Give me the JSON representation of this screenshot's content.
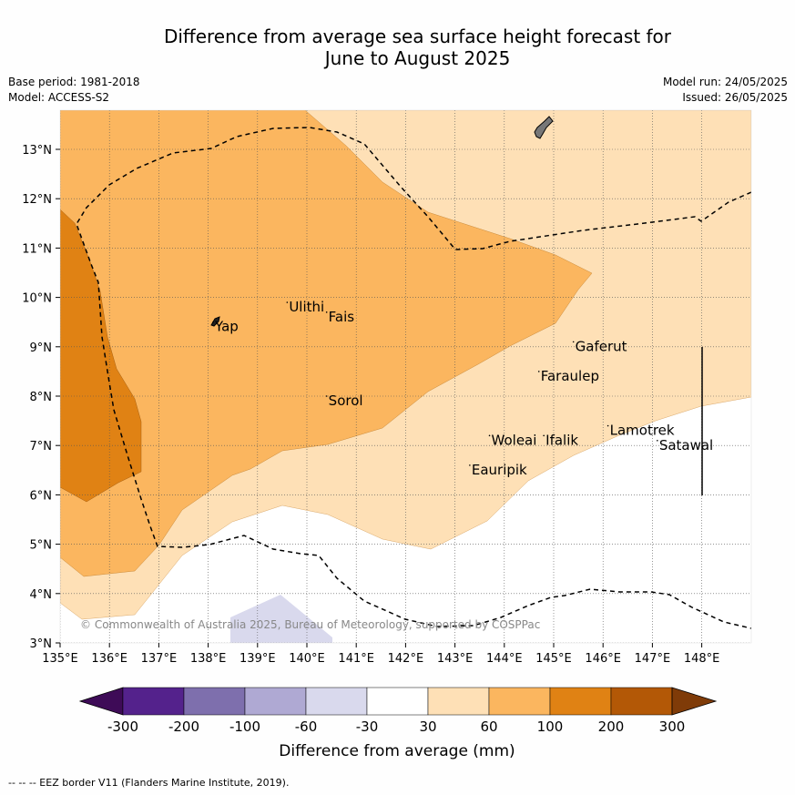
{
  "title_line1": "Difference from average sea surface height forecast for",
  "title_line2": "June to August 2025",
  "base_period": "Base period: 1981-2018",
  "model": "Model: ACCESS-S2",
  "model_run": "Model run: 24/05/2025",
  "issued": "Issued: 26/05/2025",
  "copyright": "© Commonwealth of Australia 2025, Bureau of Meteorology, supported by COSPPac",
  "footer": "--  --  -- EEZ border V11 (Flanders Marine Institute, 2019).",
  "map": {
    "lon_range": [
      135,
      149
    ],
    "lat_range": [
      3,
      13.8
    ],
    "lon_ticks": [
      "135°E",
      "136°E",
      "137°E",
      "138°E",
      "139°E",
      "140°E",
      "141°E",
      "142°E",
      "143°E",
      "144°E",
      "145°E",
      "146°E",
      "147°E",
      "148°E"
    ],
    "lat_ticks": [
      "3°N",
      "4°N",
      "5°N",
      "6°N",
      "7°N",
      "8°N",
      "9°N",
      "10°N",
      "11°N",
      "12°N",
      "13°N"
    ],
    "places": [
      {
        "name": "Yap",
        "lon": 138.1,
        "lat": 9.5
      },
      {
        "name": "Ulithi",
        "lon": 139.6,
        "lat": 9.9
      },
      {
        "name": "Fais",
        "lon": 140.4,
        "lat": 9.7
      },
      {
        "name": "Sorol",
        "lon": 140.4,
        "lat": 8.0
      },
      {
        "name": "Gaferut",
        "lon": 145.4,
        "lat": 9.1
      },
      {
        "name": "Faraulep",
        "lon": 144.7,
        "lat": 8.5
      },
      {
        "name": "Woleai",
        "lon": 143.7,
        "lat": 7.2
      },
      {
        "name": "Ifalik",
        "lon": 144.8,
        "lat": 7.2
      },
      {
        "name": "Lamotrek",
        "lon": 146.1,
        "lat": 7.4
      },
      {
        "name": "Satawal",
        "lon": 147.1,
        "lat": 7.1
      },
      {
        "name": "Eauripik",
        "lon": 143.3,
        "lat": 6.6
      }
    ]
  },
  "colorbar": {
    "ticks": [
      "-300",
      "-200",
      "-100",
      "-60",
      "-30",
      "30",
      "60",
      "100",
      "200",
      "300"
    ],
    "colors": [
      "#3e0b57",
      "#54228c",
      "#7e6fad",
      "#afa9d3",
      "#d9d9ed",
      "#ffffff",
      "#fee0b6",
      "#fbb65f",
      "#e08214",
      "#b35806",
      "#7f3b08"
    ],
    "label": "Difference from average (mm)"
  }
}
